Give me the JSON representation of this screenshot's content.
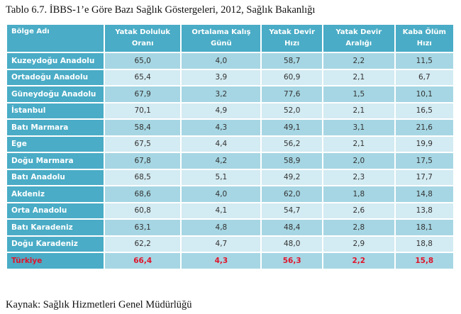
{
  "title": "Tablo 6.7. İBBS-1’e Göre Bazı Sağlık Göstergeleri, 2012, Sağlık Bakanlığı",
  "headers": [
    "Bölge Adı",
    "Yatak Doluluk Oranı",
    "Ortalama Kalış Günü",
    "Yatak Devir Hızı",
    "Yatak Devir Aralığı",
    "Kaba Ölüm Hızı"
  ],
  "rows": [
    [
      "Kuzeydoğu Anadolu",
      "65,0",
      "4,0",
      "58,7",
      "2,2",
      "11,5"
    ],
    [
      "Ortadoğu Anadolu",
      "65,4",
      "3,9",
      "60,9",
      "2,1",
      "6,7"
    ],
    [
      "Güneydoğu Anadolu",
      "67,9",
      "3,2",
      "77,6",
      "1,5",
      "10,1"
    ],
    [
      "İstanbul",
      "70,1",
      "4,9",
      "52,0",
      "2,1",
      "16,5"
    ],
    [
      "Batı Marmara",
      "58,4",
      "4,3",
      "49,1",
      "3,1",
      "21,6"
    ],
    [
      "Ege",
      "67,5",
      "4,4",
      "56,2",
      "2,1",
      "19,9"
    ],
    [
      "Doğu Marmara",
      "67,8",
      "4,2",
      "58,9",
      "2,0",
      "17,5"
    ],
    [
      "Batı Anadolu",
      "68,5",
      "5,1",
      "49,2",
      "2,3",
      "17,7"
    ],
    [
      "Akdeniz",
      "68,6",
      "4,0",
      "62,0",
      "1,8",
      "14,8"
    ],
    [
      "Orta Anadolu",
      "60,8",
      "4,1",
      "54,7",
      "2,6",
      "13,8"
    ],
    [
      "Batı Karadeniz",
      "63,1",
      "4,8",
      "48,4",
      "2,8",
      "18,1"
    ],
    [
      "Doğu Karadeniz",
      "62,2",
      "4,7",
      "48,0",
      "2,9",
      "18,8"
    ]
  ],
  "total": [
    "Türkiye",
    "66,4",
    "4,3",
    "56,3",
    "2,2",
    "15,8"
  ],
  "source": "Kaynak: Sağlık Hizmetleri Genel Müdürlüğü",
  "colors": {
    "header": "#4aacc6",
    "row_dark": "#a6d6e3",
    "row_light": "#d3ebf2",
    "total_text": "#e0152b"
  }
}
